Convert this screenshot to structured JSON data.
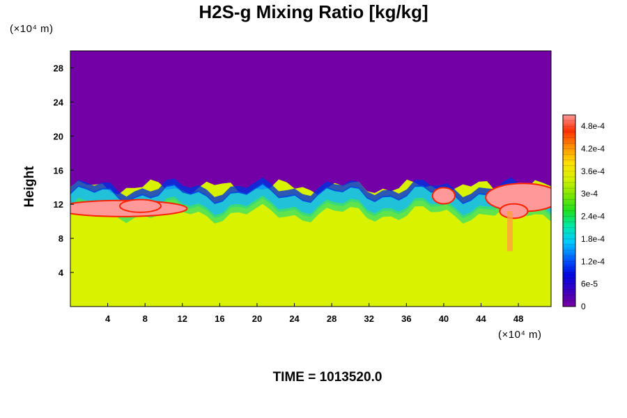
{
  "chart_data": {
    "type": "heatmap",
    "title": "H2S-g Mixing Ratio [kg/kg]",
    "ylabel": "Height",
    "x_unit": "(×10⁴ m)",
    "y_unit": "(×10⁴ m)",
    "x_range": [
      0,
      51.5
    ],
    "y_range": [
      0,
      30
    ],
    "x_ticks": [
      4,
      8,
      12,
      16,
      20,
      24,
      28,
      32,
      36,
      40,
      44,
      48
    ],
    "y_ticks": [
      4,
      8,
      12,
      16,
      20,
      24,
      28
    ],
    "colorbar": {
      "min": 0,
      "max": 0.00051,
      "ticks": [
        "0",
        "6e-5",
        "1.2e-4",
        "1.8e-4",
        "2.4e-4",
        "3e-4",
        "3.6e-4",
        "4.2e-4",
        "4.8e-4"
      ],
      "tick_values": [
        0,
        6e-05,
        0.00012,
        0.00018,
        0.00024,
        0.0003,
        0.00036,
        0.00042,
        0.00048
      ]
    },
    "field_summary": {
      "lower_layer_value": 0.00034,
      "upper_layer_value": 0.0,
      "interface_height": 12.5,
      "peak_value": 0.00051
    },
    "annotations": [
      "TIME = 1013520.0"
    ]
  },
  "colors": {
    "upper_region": "#7200a6",
    "lower_region": "#d9f200",
    "colorbar_stops": [
      "#7a00a0",
      "#3a00c0",
      "#0008e0",
      "#0060ff",
      "#00c8ff",
      "#00e8b0",
      "#20e020",
      "#80e800",
      "#d8f000",
      "#ffe000",
      "#ff9000",
      "#ff3000",
      "#ff9898"
    ]
  }
}
